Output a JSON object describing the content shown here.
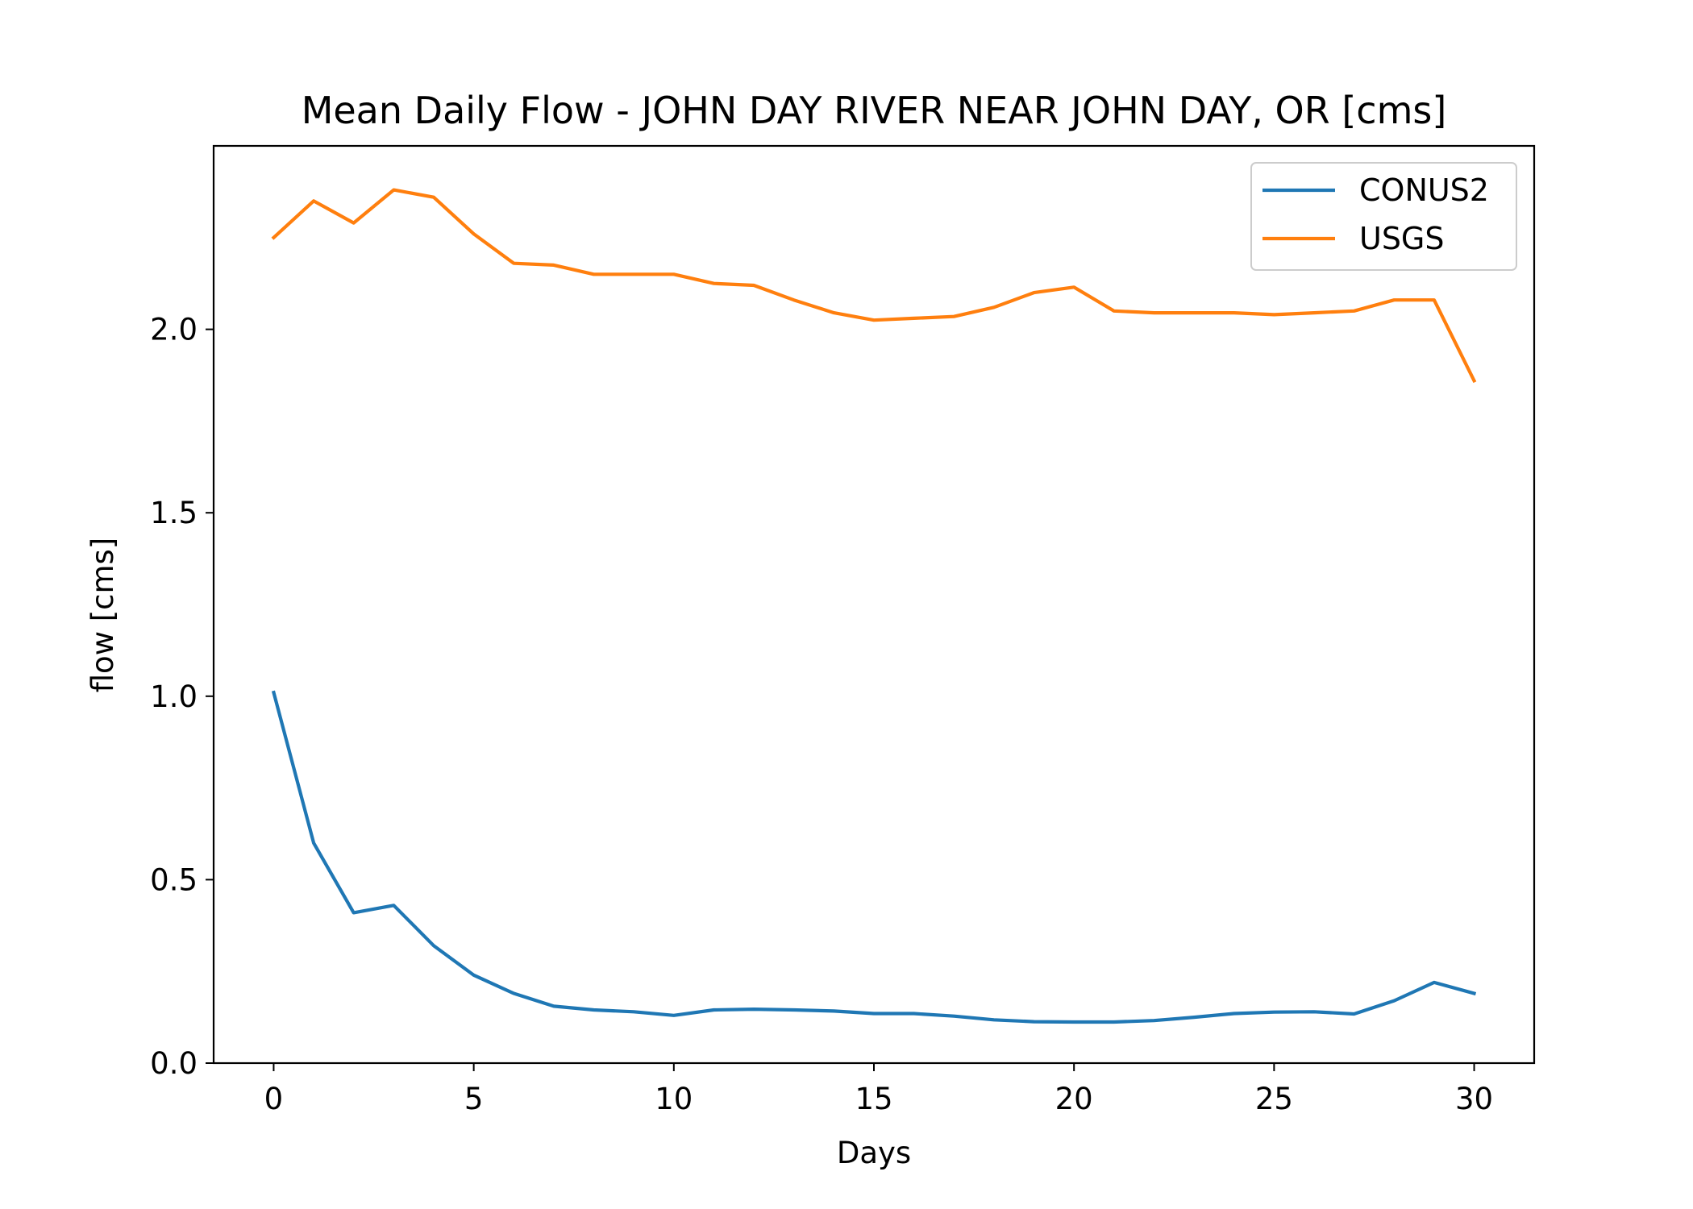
{
  "chart_data": {
    "type": "line",
    "title": "Mean Daily Flow - JOHN DAY RIVER NEAR JOHN DAY, OR [cms]",
    "xlabel": "Days",
    "ylabel": "flow [cms]",
    "xlim": [
      -1.5,
      31.5
    ],
    "ylim": [
      0.0,
      2.5
    ],
    "xticks": [
      0,
      5,
      10,
      15,
      20,
      25,
      30
    ],
    "xtick_labels": [
      "0",
      "5",
      "10",
      "15",
      "20",
      "25",
      "30"
    ],
    "yticks": [
      0.0,
      0.5,
      1.0,
      1.5,
      2.0
    ],
    "ytick_labels": [
      "0.0",
      "0.5",
      "1.0",
      "1.5",
      "2.0"
    ],
    "grid": false,
    "legend_position": "top-right",
    "x": [
      0,
      1,
      2,
      3,
      4,
      5,
      6,
      7,
      8,
      9,
      10,
      11,
      12,
      13,
      14,
      15,
      16,
      17,
      18,
      19,
      20,
      21,
      22,
      23,
      24,
      25,
      26,
      27,
      28,
      29,
      30
    ],
    "series": [
      {
        "name": "CONUS2",
        "color": "#1f77b4",
        "values": [
          1.01,
          0.6,
          0.41,
          0.43,
          0.32,
          0.24,
          0.19,
          0.155,
          0.145,
          0.14,
          0.13,
          0.145,
          0.147,
          0.145,
          0.142,
          0.135,
          0.135,
          0.128,
          0.118,
          0.113,
          0.112,
          0.112,
          0.116,
          0.125,
          0.135,
          0.139,
          0.14,
          0.134,
          0.17,
          0.22,
          0.19
        ]
      },
      {
        "name": "USGS",
        "color": "#ff7f0e",
        "values": [
          2.25,
          2.35,
          2.29,
          2.38,
          2.36,
          2.26,
          2.18,
          2.175,
          2.15,
          2.15,
          2.15,
          2.125,
          2.12,
          2.08,
          2.045,
          2.025,
          2.03,
          2.035,
          2.06,
          2.1,
          2.115,
          2.05,
          2.045,
          2.045,
          2.045,
          2.04,
          2.045,
          2.05,
          2.08,
          2.08,
          1.86
        ]
      }
    ]
  }
}
